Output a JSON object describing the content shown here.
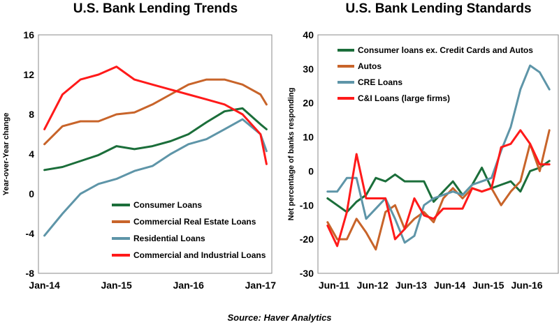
{
  "source": "Source: Haver Analytics",
  "colors": {
    "green": "#1b6e3a",
    "orange": "#c8642a",
    "blue": "#5e95a8",
    "red": "#ff1a1a"
  },
  "chart_data": [
    {
      "type": "line",
      "title": "U.S. Bank Lending Trends",
      "xlabel": "",
      "ylabel": "Year-over-Year change",
      "ylim": [
        -8,
        16
      ],
      "yticks": [
        "16",
        "12",
        "8",
        "4",
        "0",
        "-4",
        "-8"
      ],
      "xticks": [
        "Jan-14",
        "Jan-15",
        "Jan-16",
        "Jan-17"
      ],
      "legend_position": "lower-right",
      "x": [
        "2014-01",
        "2014-04",
        "2014-07",
        "2014-10",
        "2015-01",
        "2015-04",
        "2015-07",
        "2015-10",
        "2016-01",
        "2016-04",
        "2016-07",
        "2016-10",
        "2017-01",
        "2017-02"
      ],
      "series": [
        {
          "name": "Consumer Loans",
          "color": "#1b6e3a",
          "values": [
            2.4,
            2.7,
            3.3,
            3.9,
            4.8,
            4.5,
            4.8,
            5.3,
            6.0,
            7.2,
            8.3,
            8.6,
            7.0,
            6.5
          ]
        },
        {
          "name": "Commercial Real Estate Loans",
          "color": "#c8642a",
          "values": [
            5.0,
            6.8,
            7.3,
            7.3,
            8.0,
            8.2,
            9.0,
            10.0,
            11.0,
            11.5,
            11.5,
            11.0,
            10.0,
            9.0
          ]
        },
        {
          "name": "Residential Loans",
          "color": "#5e95a8",
          "values": [
            -4.2,
            -2.0,
            0.0,
            1.0,
            1.5,
            2.3,
            2.8,
            4.0,
            5.0,
            5.5,
            6.5,
            7.5,
            6.0,
            4.3
          ]
        },
        {
          "name": "Commercial and Industrial Loans",
          "color": "#ff1a1a",
          "values": [
            6.5,
            10.0,
            11.5,
            12.0,
            12.8,
            11.5,
            11.0,
            10.5,
            10.0,
            9.5,
            9.0,
            8.0,
            6.0,
            3.0
          ]
        }
      ]
    },
    {
      "type": "line",
      "title": "U.S. Bank Lending Standards",
      "xlabel": "",
      "ylabel": "Net percentage of banks responding",
      "ylim": [
        -30,
        40
      ],
      "yticks": [
        "40",
        "30",
        "20",
        "10",
        "0",
        "-10",
        "-20",
        "-30"
      ],
      "xticks": [
        "Jun-11",
        "Jun-12",
        "Jun-13",
        "Jun-14",
        "Jun-15",
        "Jun-16"
      ],
      "legend_position": "top-left",
      "x": [
        "2011-04",
        "2011-07",
        "2011-10",
        "2012-01",
        "2012-04",
        "2012-07",
        "2012-10",
        "2013-01",
        "2013-04",
        "2013-07",
        "2013-10",
        "2014-01",
        "2014-04",
        "2014-07",
        "2014-10",
        "2015-01",
        "2015-04",
        "2015-07",
        "2015-10",
        "2016-01",
        "2016-04",
        "2016-07",
        "2016-10",
        "2017-01"
      ],
      "series": [
        {
          "name": "Consumer loans ex. Credit Cards and Autos",
          "color": "#1b6e3a",
          "values": [
            -8,
            -10,
            -12,
            -9,
            -7,
            -2,
            -3,
            -1,
            -3,
            -3,
            -3,
            -9,
            -6,
            -3,
            -7,
            -4,
            1,
            -5,
            -4,
            -3,
            -6,
            0,
            1,
            3
          ]
        },
        {
          "name": "Autos",
          "color": "#c8642a",
          "values": [
            -15,
            -20,
            -20,
            -14,
            -18,
            -23,
            -12,
            -10,
            -17,
            -14,
            -12,
            -15,
            -8,
            -5,
            -8,
            -5,
            -6,
            -5,
            -10,
            -6,
            -3,
            8,
            0,
            12
          ]
        },
        {
          "name": "CRE Loans",
          "color": "#5e95a8",
          "values": [
            -6,
            -6,
            -2,
            -2,
            -14,
            -11,
            -8,
            -14,
            -21,
            -19,
            -10,
            -8,
            -7,
            -6,
            -7,
            -4,
            -3,
            -2,
            6,
            13,
            24,
            31,
            29,
            24
          ]
        },
        {
          "name": "C&I Loans (large firms)",
          "color": "#ff1a1a",
          "values": [
            -16,
            -22,
            -12,
            5,
            -8,
            -8,
            -8,
            -20,
            -17,
            -8,
            -13,
            -14,
            -11,
            -11,
            -11,
            -5,
            -6,
            -5,
            7,
            8,
            12,
            8,
            2,
            2
          ]
        }
      ]
    }
  ]
}
